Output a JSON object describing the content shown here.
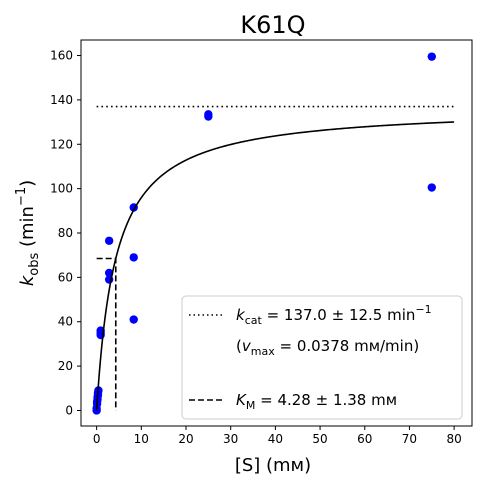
{
  "chart_data": {
    "type": "scatter",
    "title": "K61Q",
    "xlabel": "[S] (mм)",
    "ylabel": {
      "base": "k",
      "sub": "obs",
      "rest": " (min",
      "sup": "−1",
      "close": ")"
    },
    "xlim": [
      -3.5,
      84
    ],
    "ylim": [
      -7,
      167
    ],
    "xticks": [
      0,
      10,
      20,
      30,
      40,
      50,
      60,
      70,
      80
    ],
    "yticks": [
      0,
      20,
      40,
      60,
      80,
      100,
      120,
      140,
      160
    ],
    "grid": false,
    "legend_position": "lower-right",
    "series": [
      {
        "kind": "points",
        "color": "#0000ff",
        "points": [
          [
            0,
            0
          ],
          [
            0,
            1
          ],
          [
            0.1,
            3
          ],
          [
            0.1,
            4
          ],
          [
            0.2,
            5
          ],
          [
            0.2,
            6
          ],
          [
            0.3,
            7
          ],
          [
            0.3,
            8
          ],
          [
            0.4,
            9
          ],
          [
            0.9,
            34
          ],
          [
            0.9,
            35
          ],
          [
            0.9,
            36
          ],
          [
            2.8,
            59
          ],
          [
            2.8,
            62
          ],
          [
            2.8,
            76.5
          ],
          [
            8.3,
            41
          ],
          [
            8.3,
            69
          ],
          [
            8.3,
            91.5
          ],
          [
            25,
            132.5
          ],
          [
            25,
            133.5
          ],
          [
            75,
            100.5
          ],
          [
            75,
            159.5
          ]
        ]
      },
      {
        "kind": "fit",
        "color": "#000000",
        "vmax": 137.0,
        "km": 4.28,
        "x_range": [
          0,
          80
        ]
      },
      {
        "kind": "kcat-line",
        "color": "#000000",
        "y": 137.0,
        "x_range": [
          0,
          80
        ]
      },
      {
        "kind": "km-line",
        "color": "#000000",
        "x": 4.28,
        "y": 68.5,
        "x_start": 0
      }
    ],
    "legend": {
      "kcat": {
        "base": "k",
        "sub": "cat",
        "value": " = 137.0 ± 12.5 min",
        "sup": "−1"
      },
      "vmax": {
        "open": "(",
        "base": "v",
        "sub": "max",
        "value": " = 0.0378 mм/min)"
      },
      "km": {
        "base": "K",
        "sub": "M",
        "value": " = 4.28 ± 1.38 mм"
      }
    }
  }
}
